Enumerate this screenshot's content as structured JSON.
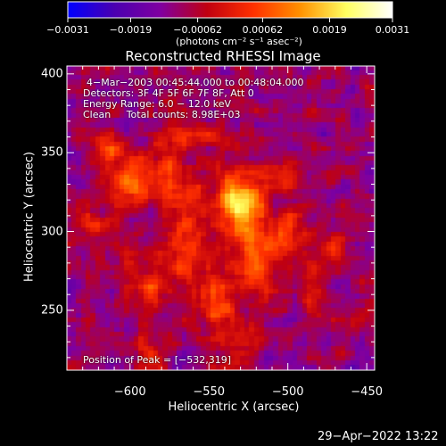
{
  "chart_data": {
    "type": "heatmap",
    "title": "Reconstructed RHESSI Image",
    "xlabel": "Heliocentric X (arcsec)",
    "ylabel": "Heliocentric Y (arcsec)",
    "xlim": [
      -640,
      -445
    ],
    "ylim": [
      212,
      405
    ],
    "xticks": [
      -600,
      -550,
      -500,
      -450
    ],
    "xtick_labels": [
      "−600",
      "−550",
      "−500",
      "−450"
    ],
    "yticks": [
      250,
      300,
      350,
      400
    ],
    "ytick_labels": [
      "250",
      "300",
      "350",
      "400"
    ],
    "colorbar": {
      "ticks": [
        -0.0031,
        -0.0019,
        -0.00062,
        0.00062,
        0.0019,
        0.0031
      ],
      "tick_labels": [
        "−0.0031",
        "−0.0019",
        "−0.00062",
        "0.00062",
        "0.0019",
        "0.0031"
      ],
      "units": "(photons cm⁻² s⁻¹ asec⁻²)",
      "vmin": -0.0031,
      "vmax": 0.0031,
      "colors": [
        "#0000ff",
        "#4a00b0",
        "#8000a0",
        "#c00010",
        "#ff3000",
        "#ff9000",
        "#ffff60",
        "#ffffff"
      ]
    },
    "peak": [
      -532,
      319
    ],
    "sources": [
      {
        "x": -532,
        "y": 319,
        "sx": 10,
        "sy": 12,
        "amp": 0.0031
      },
      {
        "x": -603,
        "y": 330,
        "sx": 8,
        "sy": 10,
        "amp": 0.002
      },
      {
        "x": -612,
        "y": 352,
        "sx": 6,
        "sy": 6,
        "amp": 0.0016
      },
      {
        "x": -580,
        "y": 338,
        "sx": 9,
        "sy": 12,
        "amp": 0.0015
      },
      {
        "x": -565,
        "y": 300,
        "sx": 9,
        "sy": 22,
        "amp": 0.0016
      },
      {
        "x": -520,
        "y": 285,
        "sx": 10,
        "sy": 20,
        "amp": 0.0017
      },
      {
        "x": -500,
        "y": 296,
        "sx": 7,
        "sy": 10,
        "amp": 0.0015
      },
      {
        "x": -590,
        "y": 265,
        "sx": 7,
        "sy": 10,
        "amp": 0.0014
      },
      {
        "x": -545,
        "y": 255,
        "sx": 10,
        "sy": 14,
        "amp": 0.0013
      },
      {
        "x": -483,
        "y": 260,
        "sx": 6,
        "sy": 14,
        "amp": 0.0011
      },
      {
        "x": -555,
        "y": 360,
        "sx": 16,
        "sy": 6,
        "amp": 0.0011
      },
      {
        "x": -505,
        "y": 335,
        "sx": 8,
        "sy": 8,
        "amp": 0.0012
      },
      {
        "x": -625,
        "y": 305,
        "sx": 6,
        "sy": 7,
        "amp": 0.001
      },
      {
        "x": -530,
        "y": 228,
        "sx": 14,
        "sy": 6,
        "amp": 0.0009
      },
      {
        "x": -470,
        "y": 285,
        "sx": 6,
        "sy": 8,
        "amp": 0.0008
      },
      {
        "x": -588,
        "y": 225,
        "sx": 7,
        "sy": 6,
        "amp": 0.0008
      }
    ],
    "annotations": [
      "4−Mar−2003 00:45:44.000 to 00:48:04.000",
      "Detectors: 3F 4F 5F 6F 7F 8F, Att 0",
      "Energy Range: 6.0 − 12.0 keV",
      "Clean     Total counts: 8.98E+03"
    ],
    "peak_label": "Position of Peak = [−532,319]"
  },
  "timestamp": "29−Apr−2022 13:22"
}
